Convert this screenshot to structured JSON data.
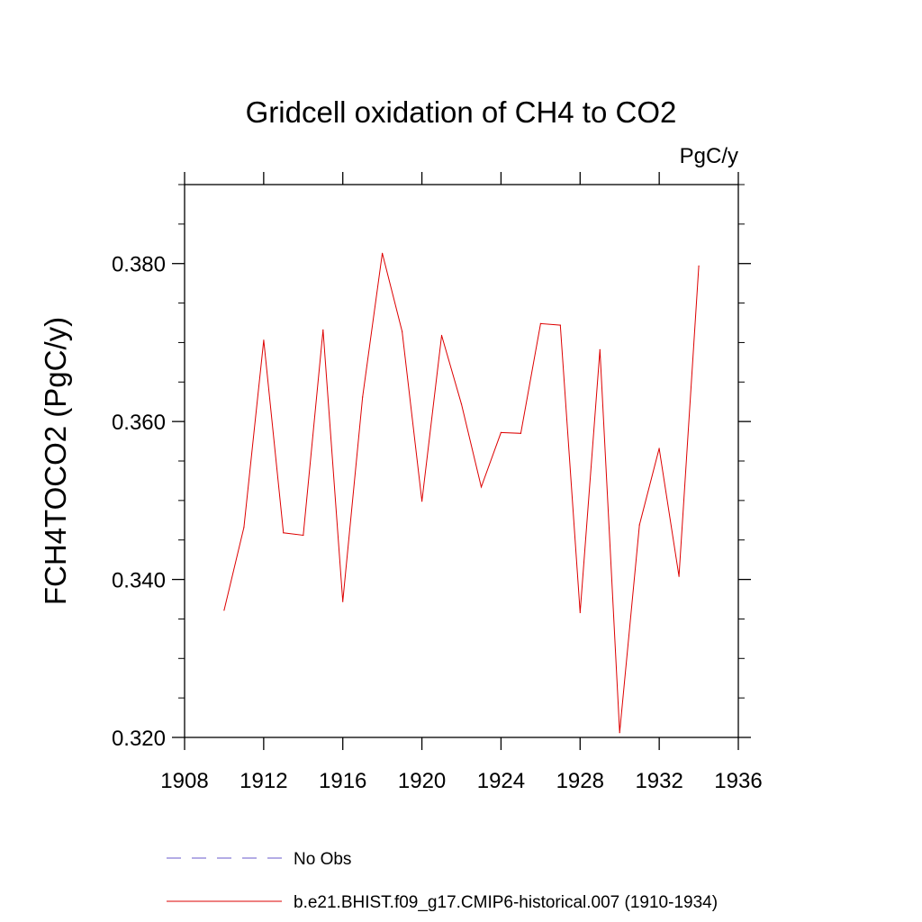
{
  "chart_data": {
    "type": "line",
    "title": "Gridcell oxidation of CH4 to CO2",
    "units": "PgC/y",
    "xlabel": "",
    "ylabel": "FCH4TOCO2  (PgC/y)",
    "xlim": [
      1908,
      1936
    ],
    "ylim": [
      0.32,
      0.39
    ],
    "x_ticks": [
      1908,
      1912,
      1916,
      1920,
      1924,
      1928,
      1932,
      1936
    ],
    "x_tick_labels": [
      "1908",
      "1912",
      "1916",
      "1920",
      "1924",
      "1928",
      "1932",
      "1936"
    ],
    "y_ticks": [
      0.32,
      0.34,
      0.36,
      0.38
    ],
    "y_tick_labels": [
      "0.320",
      "0.340",
      "0.360",
      "0.380"
    ],
    "series": [
      {
        "name": "b.e21.BHIST.f09_g17.CMIP6-historical.007 (1910-1934)",
        "color": "#dd0000",
        "x": [
          1910,
          1911,
          1912,
          1913,
          1914,
          1915,
          1916,
          1917,
          1918,
          1919,
          1920,
          1921,
          1922,
          1923,
          1924,
          1925,
          1926,
          1927,
          1928,
          1929,
          1930,
          1931,
          1932,
          1933,
          1934
        ],
        "values": [
          0.3361,
          0.3466,
          0.3703,
          0.3459,
          0.3456,
          0.3716,
          0.3372,
          0.3631,
          0.3813,
          0.3714,
          0.3499,
          0.3709,
          0.3622,
          0.3517,
          0.3586,
          0.3585,
          0.3724,
          0.3722,
          0.3358,
          0.3691,
          0.3206,
          0.3469,
          0.3566,
          0.3404,
          0.3797
        ]
      }
    ],
    "legend": [
      {
        "label": "No Obs",
        "style": "dashed",
        "color": "#6a5acd"
      },
      {
        "label": "b.e21.BHIST.f09_g17.CMIP6-historical.007 (1910-1934)",
        "style": "solid",
        "color": "#dd0000"
      }
    ]
  }
}
